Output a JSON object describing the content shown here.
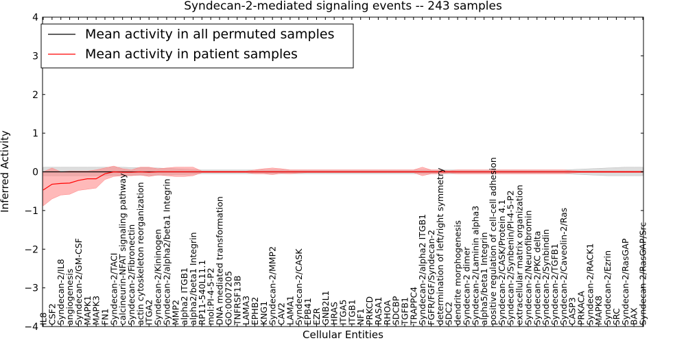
{
  "chart_data": {
    "type": "line",
    "title": "Syndecan-2-mediated signaling events -- 243 samples",
    "xlabel": "Cellular Entities",
    "ylabel": "Inferred Activity",
    "ylim": [
      -4,
      4
    ],
    "yticks": [
      "4",
      "3",
      "2",
      "1",
      "0",
      "−1",
      "−2",
      "−3",
      "−4"
    ],
    "ytick_values": [
      4,
      3,
      2,
      1,
      0,
      -1,
      -2,
      -3,
      -4
    ],
    "grid": false,
    "legend_position": "top-left",
    "categories": [
      "IL8",
      "CSF2",
      "Syndecan-2/IL8",
      "angiogenesis",
      "Syndecan-2/GM-CSF",
      "MAPK1",
      "MAPK3",
      "FN1",
      "Syndecan-2/TACI",
      "calcineurin-NFAT signaling pathway",
      "Syndecan-2/Fibronectin",
      "actin cytoskeleton reorganization",
      "ITGA2",
      "Syndecan-2/Kininogen",
      "Syndecan-2/alpha2/beta1 Integrin",
      "MMP2",
      "alpha2 ITGB1",
      "alpha2/beta1 Integrin",
      "RP11-540L11.1",
      "mol:PI-4-5-P2",
      "DNA mediated transformation",
      "GO:0007205",
      "TNFRSF13B",
      "LAMA3",
      "EPHB2",
      "KNG1",
      "Syndecan-2/MMP2",
      "CAV2",
      "LAMA1",
      "Syndecan-2/CASK",
      "EPB41",
      "EZR",
      "GNB2L1",
      "HRAS",
      "ITGA5",
      "ITGB1",
      "NF1",
      "PRKCD",
      "RASA1",
      "RHOA",
      "SDCBP",
      "TGFB1",
      "TRAPPC4",
      "Syndecan-2/alpha2 ITGB1",
      "FGFR/FGF/Syndecan-2",
      "determination of left/right symmetry",
      "SDC2",
      "dendrite morphogenesis",
      "Syndecan-2 dimer",
      "Syndecan-2/Laminin alpha3",
      "alpha5/beta1 Integrin",
      "positive regulation of cell-cell adhesion",
      "Syndecan-2/CASK/Protein 4.1",
      "Syndecan-2/Synbenin/PI-4-5-P2",
      "extracellular matrix organization",
      "Syndecan-2/Neurofibromin",
      "Syndecan-2/PKC delta",
      "Syndecan-2/Synbindin",
      "Syndecan-2/TGFB1",
      "Syndecan-2/Caveolin-2/Ras",
      "CASP3",
      "PRKACA",
      "Syndecan-2/RACK1",
      "MAPK8",
      "Syndecan-2/Ezrin",
      "SRC",
      "Syndecan-2/RasGAP",
      "BAX",
      "Syndecan-2/RasGAP/Src"
    ],
    "series": [
      {
        "name": "Mean activity in all permuted samples",
        "color": "#000000",
        "band_color": "#bbbbbb",
        "values": [
          0,
          0,
          0,
          0,
          0,
          0,
          0,
          0,
          0,
          0,
          0,
          0,
          0,
          0,
          0,
          0,
          0,
          0,
          0,
          0,
          0,
          0,
          0,
          0,
          0,
          0,
          0,
          0,
          0,
          0,
          0,
          0,
          0,
          0,
          0,
          0,
          0,
          0,
          0,
          0,
          0,
          0,
          0,
          0,
          0,
          0,
          0,
          0,
          0,
          0,
          0,
          0,
          0,
          0,
          0,
          0,
          0,
          0,
          0,
          0,
          0,
          0,
          0,
          0,
          0,
          0,
          0,
          0,
          0
        ],
        "lower": [
          -0.1,
          -0.1,
          -0.1,
          -0.1,
          -0.1,
          -0.1,
          -0.1,
          -0.1,
          -0.09,
          -0.09,
          -0.09,
          -0.09,
          -0.09,
          -0.09,
          -0.08,
          -0.07,
          -0.07,
          -0.06,
          -0.05,
          -0.05,
          -0.05,
          -0.05,
          -0.05,
          -0.05,
          -0.05,
          -0.05,
          -0.05,
          -0.05,
          -0.05,
          -0.05,
          -0.05,
          -0.05,
          -0.05,
          -0.05,
          -0.05,
          -0.05,
          -0.05,
          -0.05,
          -0.05,
          -0.05,
          -0.05,
          -0.05,
          -0.05,
          -0.05,
          -0.05,
          -0.05,
          -0.05,
          -0.05,
          -0.05,
          -0.05,
          -0.05,
          -0.05,
          -0.05,
          -0.05,
          -0.05,
          -0.05,
          -0.05,
          -0.05,
          -0.05,
          -0.05,
          -0.06,
          -0.07,
          -0.08,
          -0.09,
          -0.1,
          -0.1,
          -0.1,
          -0.1,
          -0.1
        ],
        "upper": [
          0.12,
          0.12,
          0.12,
          0.12,
          0.12,
          0.12,
          0.12,
          0.12,
          0.12,
          0.12,
          0.11,
          0.11,
          0.11,
          0.1,
          0.09,
          0.08,
          0.07,
          0.06,
          0.05,
          0.05,
          0.05,
          0.05,
          0.05,
          0.05,
          0.05,
          0.05,
          0.05,
          0.05,
          0.05,
          0.05,
          0.05,
          0.05,
          0.05,
          0.05,
          0.05,
          0.05,
          0.05,
          0.05,
          0.05,
          0.05,
          0.05,
          0.05,
          0.05,
          0.05,
          0.05,
          0.05,
          0.05,
          0.05,
          0.05,
          0.05,
          0.05,
          0.05,
          0.05,
          0.05,
          0.05,
          0.05,
          0.05,
          0.05,
          0.05,
          0.05,
          0.06,
          0.07,
          0.08,
          0.09,
          0.1,
          0.11,
          0.12,
          0.12,
          0.12
        ]
      },
      {
        "name": "Mean activity in patient samples",
        "color": "#ff0000",
        "band_color": "#ff8080",
        "values": [
          -0.47,
          -0.32,
          -0.3,
          -0.29,
          -0.22,
          -0.18,
          -0.18,
          -0.05,
          0,
          -0.01,
          -0.01,
          0,
          -0.01,
          0,
          0,
          0,
          0,
          0,
          0,
          0,
          0,
          0,
          0,
          0,
          0,
          0,
          0,
          0,
          0,
          0,
          0,
          0,
          0,
          0,
          0,
          0,
          0,
          0,
          0,
          0,
          0,
          0,
          0,
          0,
          0,
          0,
          0,
          0,
          0,
          0,
          0,
          0,
          0,
          0,
          0,
          0,
          0,
          0,
          0,
          0,
          0,
          0,
          0,
          0,
          0,
          0,
          0,
          0,
          0
        ],
        "lower": [
          -0.88,
          -0.7,
          -0.6,
          -0.58,
          -0.48,
          -0.45,
          -0.42,
          -0.2,
          -0.12,
          -0.1,
          -0.1,
          -0.08,
          -0.12,
          -0.08,
          -0.1,
          -0.12,
          -0.12,
          -0.1,
          -0.02,
          -0.02,
          -0.02,
          -0.02,
          -0.02,
          -0.02,
          -0.05,
          -0.05,
          -0.07,
          -0.04,
          -0.05,
          -0.03,
          -0.02,
          -0.02,
          -0.02,
          -0.02,
          -0.02,
          -0.02,
          -0.02,
          -0.02,
          -0.02,
          -0.02,
          -0.02,
          -0.02,
          -0.02,
          -0.1,
          -0.05,
          -0.05,
          -0.03,
          -0.05,
          -0.05,
          -0.05,
          -0.05,
          -0.05,
          -0.05,
          -0.05,
          -0.05,
          -0.05,
          -0.05,
          -0.05,
          -0.05,
          -0.05,
          -0.03,
          -0.02,
          -0.02,
          -0.02,
          -0.02,
          -0.02,
          -0.02,
          -0.02,
          -0.02
        ],
        "upper": [
          0.0,
          0.1,
          0.0,
          0.02,
          0.02,
          0.02,
          0.05,
          0.1,
          0.15,
          0.08,
          0.05,
          0.12,
          0.12,
          0.08,
          0.1,
          0.12,
          0.12,
          0.12,
          0.02,
          0.02,
          0.02,
          0.02,
          0.02,
          0.02,
          0.05,
          0.08,
          0.1,
          0.08,
          0.05,
          0.05,
          0.05,
          0.05,
          0.05,
          0.05,
          0.05,
          0.05,
          0.05,
          0.05,
          0.05,
          0.05,
          0.05,
          0.05,
          0.05,
          0.12,
          0.05,
          0.05,
          0.03,
          0.05,
          0.05,
          0.05,
          0.05,
          0.05,
          0.05,
          0.05,
          0.05,
          0.05,
          0.05,
          0.05,
          0.05,
          0.05,
          0.03,
          0.02,
          0.02,
          0.02,
          0.02,
          0.02,
          0.02,
          0.02,
          0.02
        ]
      }
    ]
  }
}
